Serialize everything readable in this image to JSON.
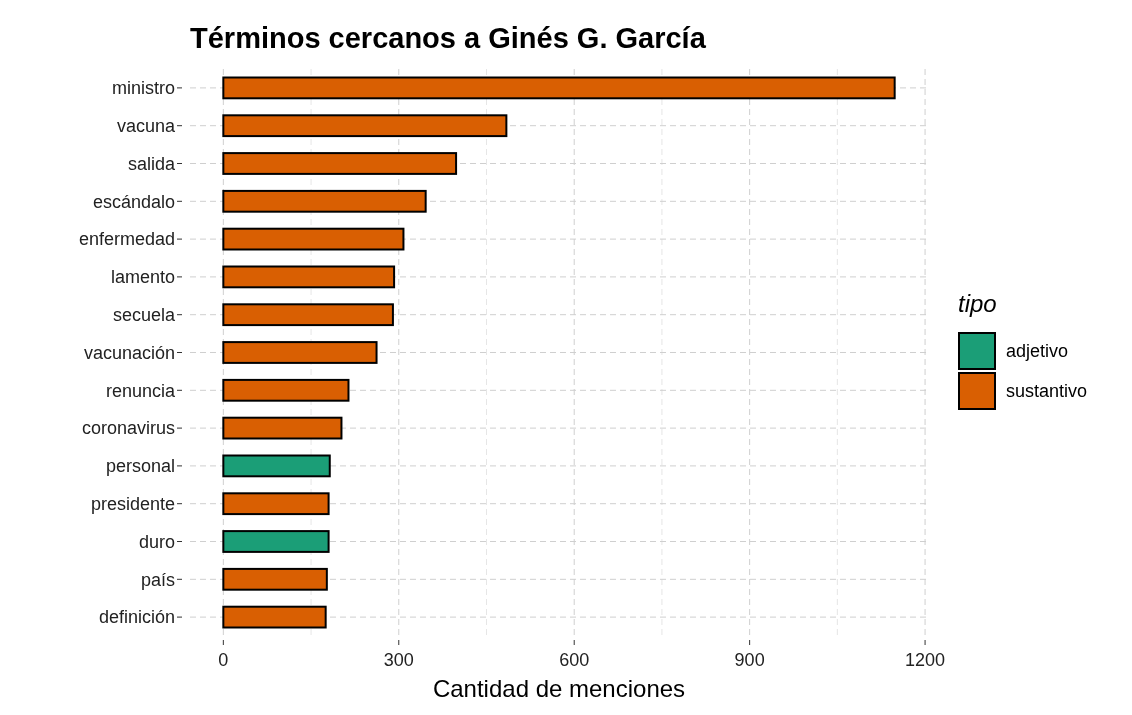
{
  "chart_data": {
    "type": "bar",
    "orientation": "horizontal",
    "stacked": true,
    "title": "Términos cercanos a Ginés G. García",
    "xlabel": "Cantidad de menciones",
    "legend_title": "tipo",
    "legend": "right",
    "grid": true,
    "categories": [
      "ministro",
      "vacuna",
      "salida",
      "escándalo",
      "enfermedad",
      "lamento",
      "secuela",
      "vacunación",
      "renuncia",
      "coronavirus",
      "personal",
      "presidente",
      "duro",
      "país",
      "definición"
    ],
    "series": [
      {
        "name": "adjetivo",
        "color": "#1b9e77",
        "values": [
          null,
          null,
          null,
          null,
          null,
          null,
          null,
          null,
          null,
          null,
          182,
          null,
          180,
          null,
          null
        ]
      },
      {
        "name": "sustantivo",
        "color": "#d95f02",
        "values": [
          1148,
          484,
          398,
          346,
          308,
          292,
          290,
          262,
          214,
          202,
          null,
          180,
          null,
          177,
          175
        ]
      }
    ],
    "xlim": [
      -57,
      1205
    ],
    "xticks": [
      0,
      300,
      600,
      900,
      1200
    ]
  }
}
